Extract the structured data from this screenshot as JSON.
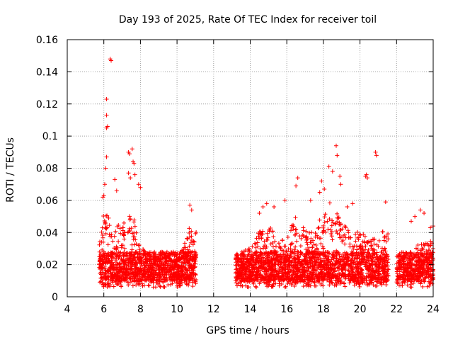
{
  "chart_data": {
    "type": "scatter",
    "title": "Day 193 of 2025, Rate Of TEC Index for receiver toil",
    "xlabel": "GPS time / hours",
    "ylabel": "ROTI / TECUs",
    "xlim": [
      4,
      24
    ],
    "ylim": [
      0,
      0.16
    ],
    "xticks": [
      "4",
      "6",
      "8",
      "10",
      "12",
      "14",
      "16",
      "18",
      "20",
      "22",
      "24"
    ],
    "yticks": [
      "0",
      "0.02",
      "0.04",
      "0.06",
      "0.08",
      "0.1",
      "0.12",
      "0.14",
      "0.16"
    ],
    "grid": true,
    "marker": "+",
    "series": [
      {
        "name": "ROTI",
        "color": "#ff0000",
        "segments": [
          {
            "start": 5.75,
            "end": 11.05
          },
          {
            "start": 13.2,
            "end": 21.55
          },
          {
            "start": 22.0,
            "end": 24.0
          }
        ],
        "envelope": [
          [
            5.8,
            0.04
          ],
          [
            6.0,
            0.06
          ],
          [
            6.2,
            0.055
          ],
          [
            6.5,
            0.05
          ],
          [
            7.0,
            0.05
          ],
          [
            7.5,
            0.06
          ],
          [
            8.0,
            0.035
          ],
          [
            8.5,
            0.03
          ],
          [
            9.0,
            0.03
          ],
          [
            9.5,
            0.03
          ],
          [
            10.0,
            0.03
          ],
          [
            10.5,
            0.04
          ],
          [
            10.7,
            0.05
          ],
          [
            11.0,
            0.045
          ],
          [
            13.3,
            0.03
          ],
          [
            14.0,
            0.035
          ],
          [
            14.5,
            0.045
          ],
          [
            15.0,
            0.05
          ],
          [
            15.5,
            0.04
          ],
          [
            16.0,
            0.04
          ],
          [
            16.5,
            0.055
          ],
          [
            17.0,
            0.045
          ],
          [
            17.5,
            0.045
          ],
          [
            18.0,
            0.06
          ],
          [
            18.3,
            0.065
          ],
          [
            18.7,
            0.06
          ],
          [
            19.0,
            0.05
          ],
          [
            19.5,
            0.045
          ],
          [
            20.0,
            0.045
          ],
          [
            20.5,
            0.04
          ],
          [
            21.0,
            0.04
          ],
          [
            21.5,
            0.05
          ],
          [
            22.0,
            0.025
          ],
          [
            22.5,
            0.03
          ],
          [
            23.0,
            0.035
          ],
          [
            23.5,
            0.04
          ],
          [
            24.0,
            0.04
          ]
        ],
        "outliers": [
          [
            6.35,
            0.148
          ],
          [
            6.4,
            0.147
          ],
          [
            6.15,
            0.123
          ],
          [
            6.15,
            0.113
          ],
          [
            6.2,
            0.106
          ],
          [
            6.15,
            0.105
          ],
          [
            6.15,
            0.087
          ],
          [
            6.1,
            0.08
          ],
          [
            6.05,
            0.07
          ],
          [
            5.95,
            0.062
          ],
          [
            6.0,
            0.063
          ],
          [
            6.6,
            0.073
          ],
          [
            6.7,
            0.066
          ],
          [
            7.35,
            0.09
          ],
          [
            7.4,
            0.089
          ],
          [
            7.55,
            0.092
          ],
          [
            7.6,
            0.084
          ],
          [
            7.65,
            0.083
          ],
          [
            7.35,
            0.077
          ],
          [
            7.45,
            0.074
          ],
          [
            7.7,
            0.076
          ],
          [
            7.9,
            0.07
          ],
          [
            8.0,
            0.068
          ],
          [
            10.7,
            0.057
          ],
          [
            10.8,
            0.054
          ],
          [
            14.5,
            0.052
          ],
          [
            14.7,
            0.056
          ],
          [
            14.9,
            0.058
          ],
          [
            15.3,
            0.056
          ],
          [
            15.9,
            0.06
          ],
          [
            16.6,
            0.074
          ],
          [
            16.5,
            0.069
          ],
          [
            17.3,
            0.06
          ],
          [
            17.8,
            0.065
          ],
          [
            17.9,
            0.072
          ],
          [
            18.05,
            0.067
          ],
          [
            18.3,
            0.081
          ],
          [
            18.5,
            0.078
          ],
          [
            18.7,
            0.094
          ],
          [
            18.75,
            0.088
          ],
          [
            18.9,
            0.075
          ],
          [
            18.95,
            0.07
          ],
          [
            19.3,
            0.056
          ],
          [
            19.6,
            0.058
          ],
          [
            20.3,
            0.075
          ],
          [
            20.35,
            0.076
          ],
          [
            20.4,
            0.074
          ],
          [
            20.85,
            0.09
          ],
          [
            20.9,
            0.088
          ],
          [
            21.4,
            0.059
          ],
          [
            23.3,
            0.054
          ],
          [
            23.5,
            0.052
          ],
          [
            23.0,
            0.05
          ],
          [
            22.8,
            0.047
          ],
          [
            23.85,
            0.043
          ],
          [
            24.0,
            0.044
          ]
        ]
      }
    ]
  }
}
